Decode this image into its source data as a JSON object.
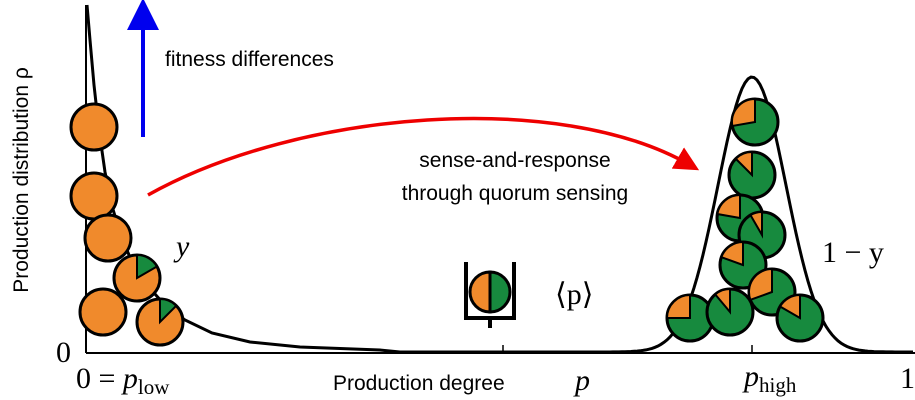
{
  "axes": {
    "y_label": "Production distribution ρ",
    "y_origin": "0",
    "x_label": "Production degree",
    "p_symbol": "p",
    "x_start": "0 =",
    "low": "low",
    "high": "high",
    "x_end": "1"
  },
  "annotations": {
    "fitness": "fitness differences",
    "sense_line1": "sense-and-response",
    "sense_line2": "through quorum sensing",
    "y": "y",
    "one_minus_y": "1 − y",
    "mean_p": "⟨p⟩"
  }
}
